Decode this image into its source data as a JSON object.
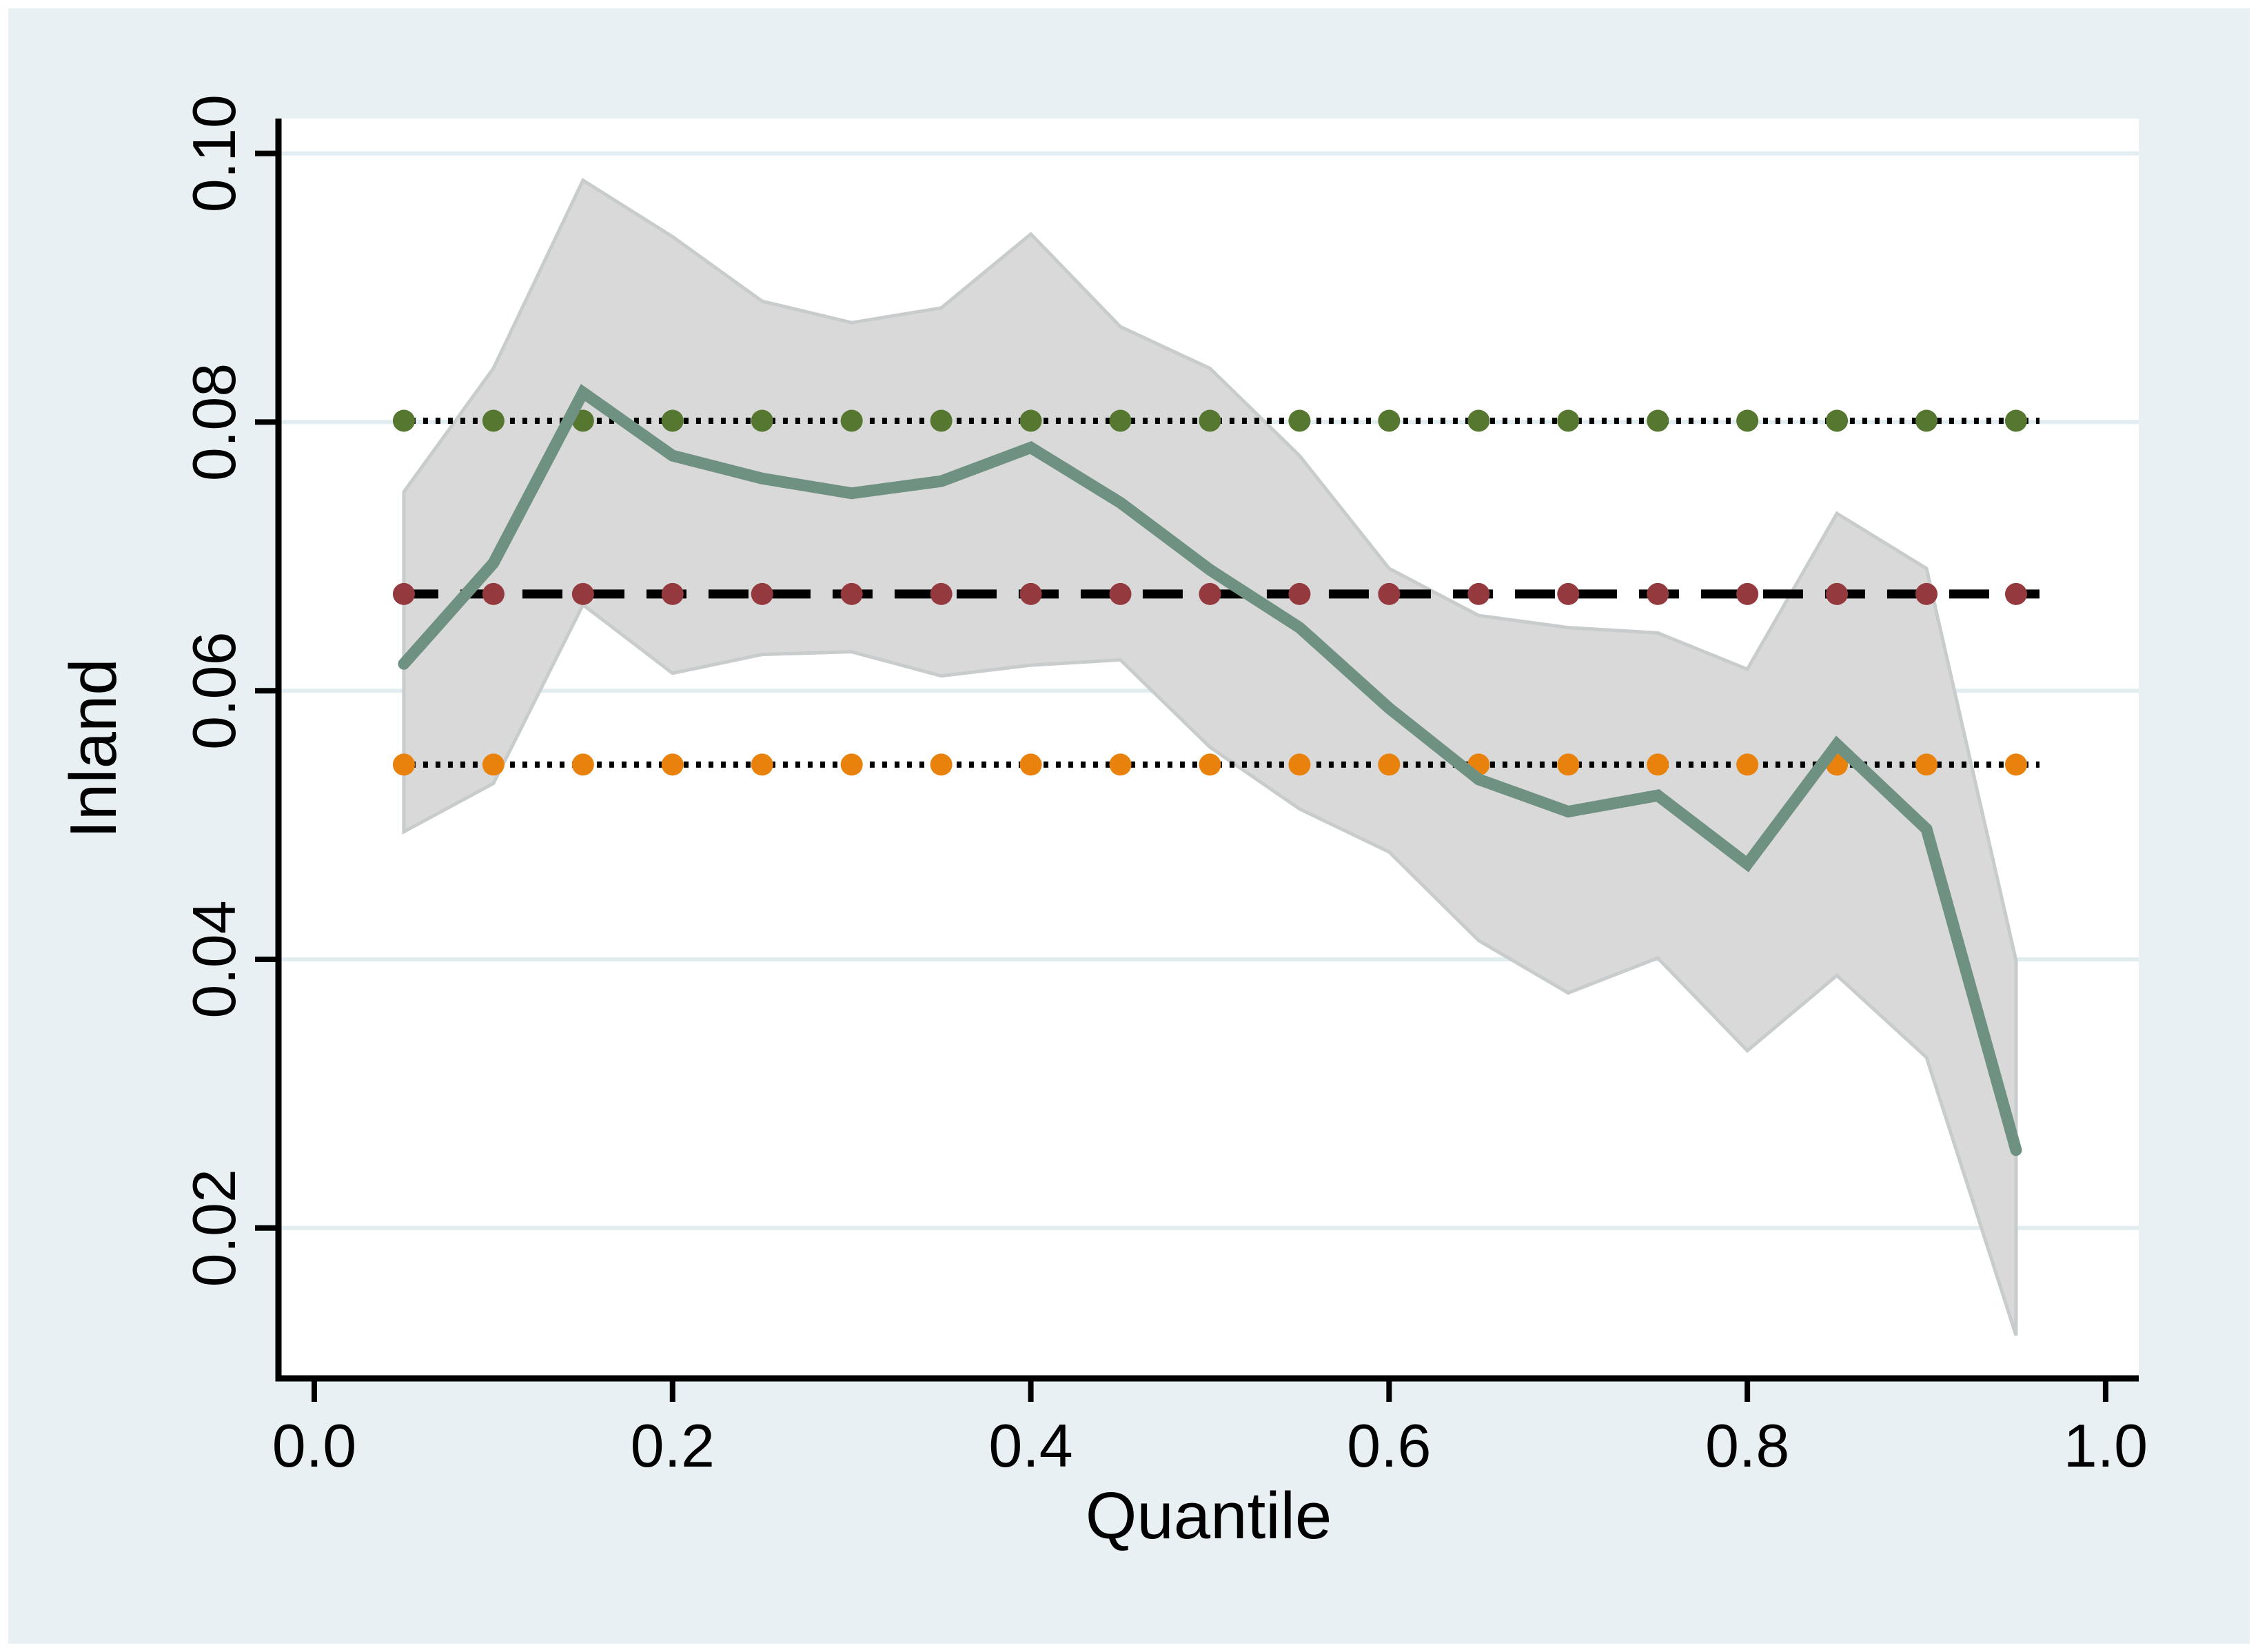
{
  "chart_data": {
    "type": "line",
    "title": "",
    "xlabel": "Quantile",
    "ylabel": "Inland",
    "x_ticks": {
      "values": [
        0.0,
        0.2,
        0.4,
        0.6,
        0.8,
        1.0
      ],
      "labels": [
        "0.0",
        "0.2",
        "0.4",
        "0.6",
        "0.8",
        "1.0"
      ]
    },
    "y_ticks": {
      "values": [
        0.02,
        0.04,
        0.06,
        0.08,
        0.1
      ],
      "labels": [
        "0.02",
        "0.04",
        "0.06",
        "0.08",
        "0.10"
      ]
    },
    "xlim": [
      -0.02,
      1.0185
    ],
    "ylim": [
      0.0088,
      0.1026
    ],
    "grid": "horizontal",
    "legend": "none",
    "quantiles": [
      0.05,
      0.1,
      0.15,
      0.2,
      0.25,
      0.3,
      0.35,
      0.4,
      0.45,
      0.5,
      0.55,
      0.6,
      0.65,
      0.7,
      0.75,
      0.8,
      0.85,
      0.9,
      0.95
    ],
    "quantile_estimate": {
      "name": "quantile-regression-estimate",
      "color": "#6f9181",
      "values": [
        0.062,
        0.0695,
        0.0822,
        0.0775,
        0.0758,
        0.0747,
        0.0756,
        0.0781,
        0.074,
        0.069,
        0.0647,
        0.0587,
        0.0534,
        0.051,
        0.0522,
        0.0471,
        0.056,
        0.0497,
        0.0258
      ]
    },
    "ci_band": {
      "name": "quantile-95pct-confidence-band",
      "fill": "#d9d9d9",
      "edge": "#c8cccc",
      "upper": [
        0.0748,
        0.084,
        0.098,
        0.0938,
        0.089,
        0.0874,
        0.0885,
        0.094,
        0.0871,
        0.084,
        0.0775,
        0.0691,
        0.0656,
        0.0647,
        0.0643,
        0.0616,
        0.0732,
        0.0691,
        0.0399
      ],
      "lower": [
        0.0495,
        0.0531,
        0.0664,
        0.0613,
        0.0627,
        0.0629,
        0.0611,
        0.0619,
        0.0623,
        0.0558,
        0.0512,
        0.048,
        0.0414,
        0.0375,
        0.0401,
        0.0332,
        0.0388,
        0.0327,
        0.012
      ]
    },
    "ols": {
      "estimate": {
        "value": 0.0672,
        "line_style": "dashed",
        "line_color": "#000000",
        "marker_color": "#943a3e"
      },
      "ci_upper": {
        "value": 0.0801,
        "line_style": "dotted",
        "line_color": "#000000",
        "marker_color": "#567730"
      },
      "ci_lower": {
        "value": 0.0545,
        "line_style": "dotted",
        "line_color": "#000000",
        "marker_color": "#e8820d"
      }
    },
    "colors": {
      "background": "#e9f0f3",
      "plot_background": "#ffffff",
      "gridline": "#e2edf1",
      "axis": "#000000",
      "text": "#000000"
    }
  }
}
